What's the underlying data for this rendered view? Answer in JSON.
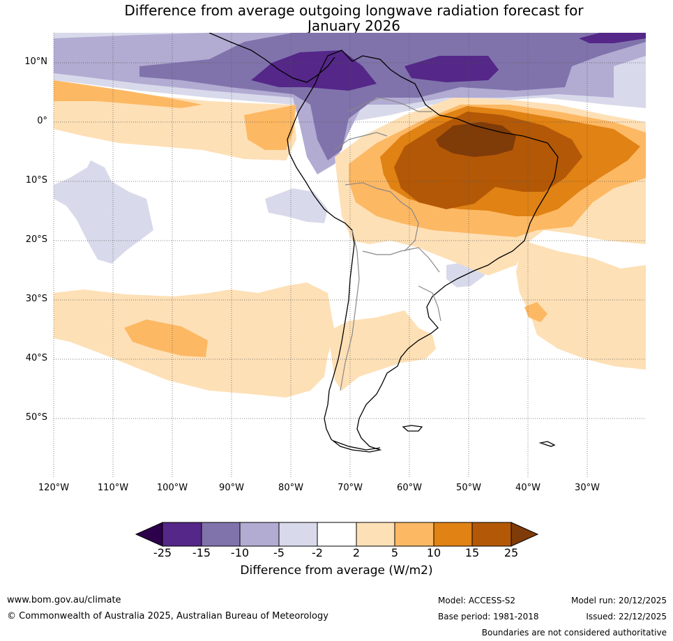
{
  "title": {
    "line1": "Difference from average outgoing longwave radiation forecast for",
    "line2": "January 2026"
  },
  "map": {
    "lat_labels": [
      "10°N",
      "0°",
      "10°S",
      "20°S",
      "30°S",
      "40°S",
      "50°S"
    ],
    "lon_labels": [
      "120°W",
      "110°W",
      "100°W",
      "90°W",
      "80°W",
      "70°W",
      "60°W",
      "50°W",
      "40°W",
      "30°W"
    ],
    "lat_range": [
      -60,
      15
    ],
    "lon_range": [
      -120,
      -20
    ],
    "colors": {
      "n25": "#2d004b",
      "n15_25": "#542788",
      "n10_15": "#8073ac",
      "n5_10": "#b2abd2",
      "n2_5": "#d8daeb",
      "p2_5": "#fee0b6",
      "p5_10": "#fdb863",
      "p10_15": "#e08214",
      "p15_25": "#b35806",
      "p25": "#7f3b08"
    }
  },
  "colorbar": {
    "ticks": [
      "-25",
      "-15",
      "-10",
      "-5",
      "-2",
      "2",
      "5",
      "10",
      "15",
      "25"
    ],
    "label": "Difference from average (W/m2)"
  },
  "footer": {
    "website": "www.bom.gov.au/climate",
    "copyright": "© Commonwealth of Australia 2025, Australian Bureau of Meteorology",
    "model": "Model: ACCESS-S2",
    "base_period": "Base period: 1981-2018",
    "model_run": "Model run: 20/12/2025",
    "issued": "Issued: 22/12/2025",
    "disclaimer": "Boundaries are not considered authoritative"
  }
}
